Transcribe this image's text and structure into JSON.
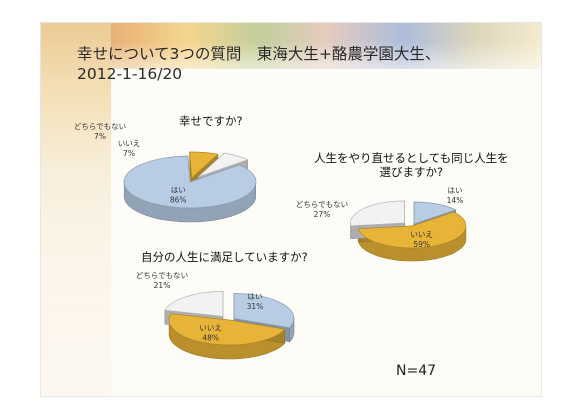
{
  "title_line1": "幸せについて3つの質問　東海大生+酪農学園大生、",
  "title_line2": "2012-1-16/20",
  "n_label": "N=47",
  "chart_data": [
    {
      "type": "pie",
      "title": "幸せですか?",
      "slices": [
        {
          "label": "はい",
          "value": 86,
          "value_label": "86%",
          "color": "#b8cce4"
        },
        {
          "label": "いいえ",
          "value": 7,
          "value_label": "7%",
          "color": "#e7b437"
        },
        {
          "label": "どちらでもない",
          "value": 7,
          "value_label": "7%",
          "color": "#f2f2f2"
        }
      ]
    },
    {
      "type": "pie",
      "title_lines": [
        "人生をやり直せるとしても同じ人生を",
        "選びますか?"
      ],
      "slices": [
        {
          "label": "はい",
          "value": 14,
          "value_label": "14%",
          "color": "#b8cce4"
        },
        {
          "label": "いいえ",
          "value": 59,
          "value_label": "59%",
          "color": "#e7b437"
        },
        {
          "label": "どちらでもない",
          "value": 27,
          "value_label": "27%",
          "color": "#f2f2f2"
        }
      ]
    },
    {
      "type": "pie",
      "title": "自分の人生に満足していますか?",
      "slices": [
        {
          "label": "はい",
          "value": 31,
          "value_label": "31%",
          "color": "#b8cce4"
        },
        {
          "label": "いいえ",
          "value": 48,
          "value_label": "48%",
          "color": "#e7b437"
        },
        {
          "label": "どちらでもない",
          "value": 21,
          "value_label": "21%",
          "color": "#f2f2f2"
        }
      ]
    }
  ]
}
